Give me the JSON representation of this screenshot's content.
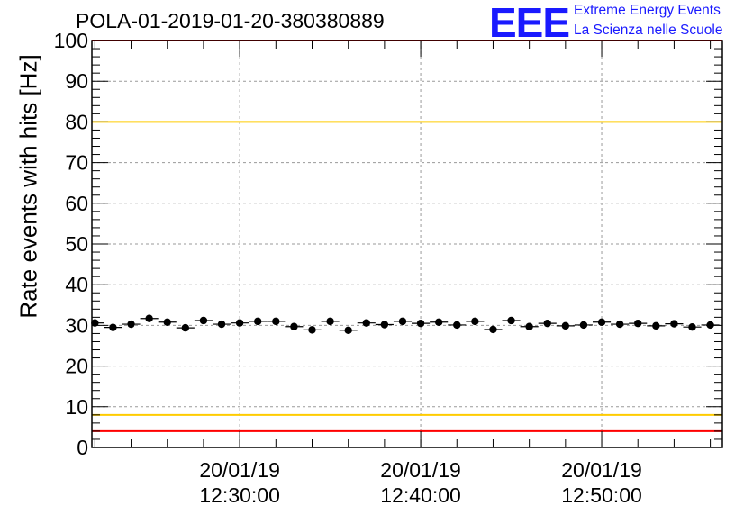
{
  "title": "POLA-01-2019-01-20-380380889",
  "logo": {
    "mark": "EEE",
    "line1": "Extreme Energy Events",
    "line2": "La Scienza nelle Scuole",
    "color": "#1a1aff"
  },
  "chart_data": {
    "type": "scatter",
    "title": "POLA-01-2019-01-20-380380889",
    "ylabel": "Rate events with hits [Hz]",
    "xlabel": "",
    "ylim": [
      0,
      100
    ],
    "y_ticks": [
      "0",
      "10",
      "20",
      "30",
      "40",
      "50",
      "60",
      "70",
      "80",
      "90",
      "100"
    ],
    "x_axis": "time",
    "x_range": [
      "2019-01-20 12:21:50",
      "2019-01-20 12:56:40"
    ],
    "x_ticks": [
      {
        "time": "2019-01-20 12:30:00",
        "date_label": "20/01/19",
        "time_label": "12:30:00"
      },
      {
        "time": "2019-01-20 12:40:00",
        "date_label": "20/01/19",
        "time_label": "12:40:00"
      },
      {
        "time": "2019-01-20 12:50:00",
        "date_label": "20/01/19",
        "time_label": "12:50:00"
      }
    ],
    "grid": true,
    "reference_lines": [
      {
        "value": 100,
        "color": "#ff0000"
      },
      {
        "value": 80,
        "color": "#ffcc00"
      },
      {
        "value": 8,
        "color": "#ffcc00"
      },
      {
        "value": 4,
        "color": "#ff0000"
      }
    ],
    "series": [
      {
        "marker": "filled-circle-with-x-error-bar",
        "color": "#000000",
        "points": [
          {
            "x": "2019-01-20 12:22:00",
            "y": 30.6
          },
          {
            "x": "2019-01-20 12:23:00",
            "y": 29.5
          },
          {
            "x": "2019-01-20 12:24:00",
            "y": 30.3
          },
          {
            "x": "2019-01-20 12:25:00",
            "y": 31.7
          },
          {
            "x": "2019-01-20 12:26:00",
            "y": 30.8
          },
          {
            "x": "2019-01-20 12:27:00",
            "y": 29.4
          },
          {
            "x": "2019-01-20 12:28:00",
            "y": 31.2
          },
          {
            "x": "2019-01-20 12:29:00",
            "y": 30.3
          },
          {
            "x": "2019-01-20 12:30:00",
            "y": 30.6
          },
          {
            "x": "2019-01-20 12:31:00",
            "y": 31.0
          },
          {
            "x": "2019-01-20 12:32:00",
            "y": 31.0
          },
          {
            "x": "2019-01-20 12:33:00",
            "y": 29.7
          },
          {
            "x": "2019-01-20 12:34:00",
            "y": 28.9
          },
          {
            "x": "2019-01-20 12:35:00",
            "y": 31.0
          },
          {
            "x": "2019-01-20 12:36:00",
            "y": 28.8
          },
          {
            "x": "2019-01-20 12:37:00",
            "y": 30.6
          },
          {
            "x": "2019-01-20 12:38:00",
            "y": 30.2
          },
          {
            "x": "2019-01-20 12:39:00",
            "y": 31.0
          },
          {
            "x": "2019-01-20 12:40:00",
            "y": 30.5
          },
          {
            "x": "2019-01-20 12:41:00",
            "y": 30.8
          },
          {
            "x": "2019-01-20 12:42:00",
            "y": 30.1
          },
          {
            "x": "2019-01-20 12:43:00",
            "y": 31.0
          },
          {
            "x": "2019-01-20 12:44:00",
            "y": 29.0
          },
          {
            "x": "2019-01-20 12:45:00",
            "y": 31.2
          },
          {
            "x": "2019-01-20 12:46:00",
            "y": 29.7
          },
          {
            "x": "2019-01-20 12:47:00",
            "y": 30.5
          },
          {
            "x": "2019-01-20 12:48:00",
            "y": 29.9
          },
          {
            "x": "2019-01-20 12:49:00",
            "y": 30.1
          },
          {
            "x": "2019-01-20 12:50:00",
            "y": 30.8
          },
          {
            "x": "2019-01-20 12:51:00",
            "y": 30.3
          },
          {
            "x": "2019-01-20 12:52:00",
            "y": 30.5
          },
          {
            "x": "2019-01-20 12:53:00",
            "y": 29.9
          },
          {
            "x": "2019-01-20 12:54:00",
            "y": 30.4
          },
          {
            "x": "2019-01-20 12:55:00",
            "y": 29.6
          },
          {
            "x": "2019-01-20 12:56:00",
            "y": 30.1
          }
        ]
      }
    ]
  }
}
